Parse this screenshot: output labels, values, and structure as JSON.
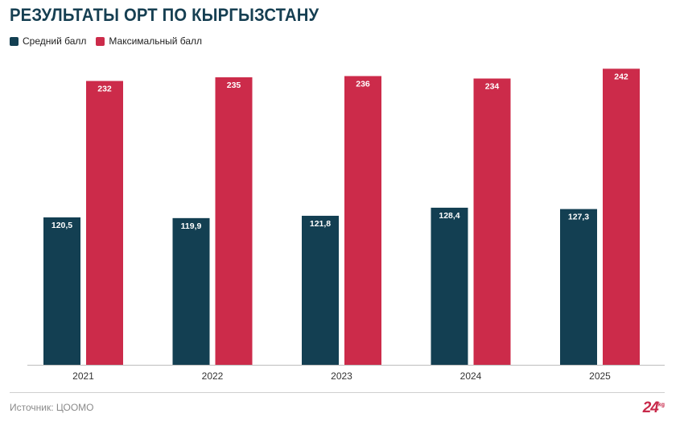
{
  "title": "РЕЗУЛЬТАТЫ ОРТ ПО КЫРГЫЗСТАНУ",
  "source": "Источник: ЦООМО",
  "logo": {
    "text": "24",
    "suffix": "kg"
  },
  "colors": {
    "avg": "#133f52",
    "max": "#cc2b4a",
    "title": "#163f52",
    "axis": "#bdbdbd"
  },
  "chart_data": {
    "type": "bar",
    "categories": [
      "2021",
      "2022",
      "2023",
      "2024",
      "2025"
    ],
    "series": [
      {
        "name": "Средний балл",
        "values": [
          120.5,
          119.9,
          121.8,
          128.4,
          127.3
        ],
        "labels": [
          "120,5",
          "119,9",
          "121,8",
          "128,4",
          "127,3"
        ]
      },
      {
        "name": "Максимальный балл",
        "values": [
          232,
          235,
          236,
          234,
          242
        ],
        "labels": [
          "232",
          "235",
          "236",
          "234",
          "242"
        ]
      }
    ],
    "ylim": [
      0,
      260
    ],
    "grid": false,
    "legend_position": "top-left",
    "title": "РЕЗУЛЬТАТЫ ОРТ ПО КЫРГЫЗСТАНУ",
    "xlabel": "",
    "ylabel": ""
  }
}
